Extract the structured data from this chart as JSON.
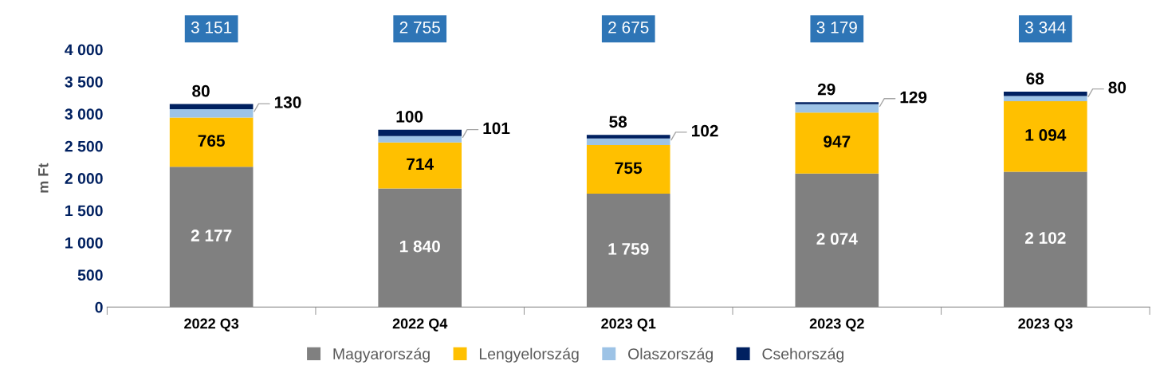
{
  "chart_data": {
    "type": "bar",
    "stacked": true,
    "ylabel": "m Ft",
    "categories": [
      "2022 Q3",
      "2022 Q4",
      "2023 Q1",
      "2023 Q2",
      "2023 Q3"
    ],
    "series": [
      {
        "name": "Magyarország",
        "color": "#808080",
        "values": [
          2177,
          1840,
          1759,
          2074,
          2102
        ],
        "value_labels": [
          "2 177",
          "1 840",
          "1 759",
          "2 074",
          "2 102"
        ]
      },
      {
        "name": "Lengyelország",
        "color": "#ffc000",
        "values": [
          765,
          714,
          755,
          947,
          1094
        ],
        "value_labels": [
          "765",
          "714",
          "755",
          "947",
          "1 094"
        ]
      },
      {
        "name": "Olaszország",
        "color": "#9dc3e6",
        "values": [
          130,
          101,
          102,
          129,
          80
        ],
        "value_labels": [
          "130",
          "101",
          "102",
          "129",
          "80"
        ]
      },
      {
        "name": "Csehország",
        "color": "#002060",
        "values": [
          80,
          100,
          58,
          29,
          68
        ],
        "value_labels": [
          "80",
          "100",
          "58",
          "29",
          "68"
        ]
      }
    ],
    "annotations": [
      "3 151",
      "2 755",
      "2 675",
      "3 179",
      "3 344"
    ],
    "ylim": [
      0,
      4000
    ],
    "yticks": [
      0,
      500,
      {
        "value": 1000,
        "label": "1 000"
      },
      {
        "value": 1500,
        "label": "1 500"
      },
      {
        "value": 2000,
        "label": "2 000"
      },
      {
        "value": 2500,
        "label": "2 500"
      },
      {
        "value": 3000,
        "label": "3 000"
      },
      {
        "value": 3500,
        "label": "3 500"
      },
      {
        "value": 4000,
        "label": "4 000"
      }
    ],
    "grid": false,
    "legend": "bottom"
  }
}
